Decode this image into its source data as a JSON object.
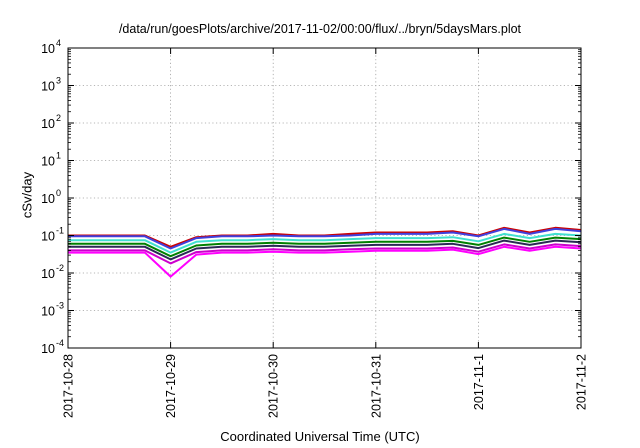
{
  "chart_data": {
    "type": "line",
    "title": "/data/run/goesPlots/archive/2017-11-02/00:00/flux/../bryn/5daysMars.plot",
    "xlabel": "Coordinated Universal Time (UTC)",
    "ylabel": "cSv/day",
    "xlim": [
      "2017-10-28 00:00",
      "2017-11-02 00:00"
    ],
    "ylim": [
      0.0001,
      10000
    ],
    "yscale": "log",
    "grid": true,
    "x_tick_labels": [
      "2017-10-28",
      "2017-10-29",
      "2017-10-30",
      "2017-10-31",
      "2017-11-1",
      "2017-11-2"
    ],
    "y_tick_labels": [
      {
        "base": "10",
        "exp": "-4"
      },
      {
        "base": "10",
        "exp": "-3"
      },
      {
        "base": "10",
        "exp": "-2"
      },
      {
        "base": "10",
        "exp": "-1"
      },
      {
        "base": "10",
        "exp": "0"
      },
      {
        "base": "10",
        "exp": "1"
      },
      {
        "base": "10",
        "exp": "2"
      },
      {
        "base": "10",
        "exp": "3"
      },
      {
        "base": "10",
        "exp": "4"
      }
    ],
    "x": [
      "2017-10-28 00:00",
      "2017-10-28 06:00",
      "2017-10-28 12:00",
      "2017-10-28 18:00",
      "2017-10-29 00:00",
      "2017-10-29 06:00",
      "2017-10-29 12:00",
      "2017-10-29 18:00",
      "2017-10-30 00:00",
      "2017-10-30 06:00",
      "2017-10-30 12:00",
      "2017-10-30 18:00",
      "2017-10-31 00:00",
      "2017-10-31 06:00",
      "2017-10-31 12:00",
      "2017-10-31 18:00",
      "2017-11-01 00:00",
      "2017-11-01 06:00",
      "2017-11-01 12:00",
      "2017-11-01 18:00",
      "2017-11-02 00:00"
    ],
    "series": [
      {
        "color": "#cc0000",
        "values": [
          0.1,
          0.1,
          0.1,
          0.1,
          0.05,
          0.09,
          0.1,
          0.1,
          0.11,
          0.1,
          0.1,
          0.11,
          0.12,
          0.12,
          0.12,
          0.13,
          0.1,
          0.16,
          0.12,
          0.16,
          0.14
        ]
      },
      {
        "color": "#4040dd",
        "values": [
          0.095,
          0.095,
          0.095,
          0.095,
          0.045,
          0.085,
          0.095,
          0.095,
          0.1,
          0.095,
          0.095,
          0.1,
          0.11,
          0.11,
          0.11,
          0.12,
          0.095,
          0.15,
          0.11,
          0.15,
          0.13
        ]
      },
      {
        "color": "#40e0d0",
        "values": [
          0.075,
          0.075,
          0.075,
          0.075,
          0.035,
          0.068,
          0.075,
          0.075,
          0.08,
          0.075,
          0.075,
          0.08,
          0.085,
          0.085,
          0.085,
          0.09,
          0.07,
          0.11,
          0.085,
          0.11,
          0.1
        ]
      },
      {
        "color": "#008000",
        "values": [
          0.06,
          0.06,
          0.06,
          0.06,
          0.028,
          0.054,
          0.06,
          0.06,
          0.064,
          0.06,
          0.06,
          0.064,
          0.068,
          0.068,
          0.068,
          0.072,
          0.056,
          0.088,
          0.068,
          0.088,
          0.08
        ]
      },
      {
        "color": "#2a2a55",
        "values": [
          0.05,
          0.05,
          0.05,
          0.05,
          0.023,
          0.045,
          0.05,
          0.05,
          0.053,
          0.05,
          0.05,
          0.053,
          0.056,
          0.056,
          0.056,
          0.06,
          0.046,
          0.073,
          0.056,
          0.073,
          0.066
        ]
      },
      {
        "color": "#cc00cc",
        "values": [
          0.04,
          0.04,
          0.04,
          0.04,
          0.018,
          0.036,
          0.04,
          0.04,
          0.043,
          0.04,
          0.04,
          0.043,
          0.045,
          0.045,
          0.045,
          0.048,
          0.037,
          0.058,
          0.045,
          0.058,
          0.052
        ]
      },
      {
        "color": "#ff00ff",
        "values": [
          0.035,
          0.035,
          0.035,
          0.035,
          0.008,
          0.031,
          0.035,
          0.035,
          0.037,
          0.035,
          0.035,
          0.037,
          0.039,
          0.039,
          0.039,
          0.042,
          0.032,
          0.05,
          0.039,
          0.05,
          0.045
        ]
      }
    ]
  }
}
